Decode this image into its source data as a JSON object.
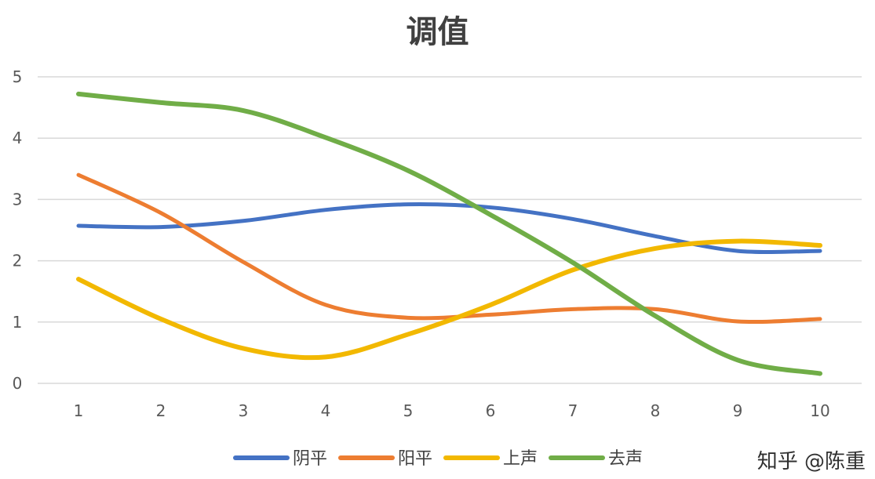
{
  "chart_data": {
    "type": "line",
    "title": "调值",
    "x": [
      1,
      2,
      3,
      4,
      5,
      6,
      7,
      8,
      9,
      10
    ],
    "x_labels": [
      "1",
      "2",
      "3",
      "4",
      "5",
      "6",
      "7",
      "8",
      "9",
      "10"
    ],
    "ylim": [
      0,
      5
    ],
    "y_ticks": [
      "0",
      "1",
      "2",
      "3",
      "4",
      "5"
    ],
    "grid": true,
    "legend_position": "bottom",
    "series": [
      {
        "name": "阴平",
        "color": "#4472C4",
        "values": [
          2.57,
          2.55,
          2.65,
          2.83,
          2.92,
          2.87,
          2.68,
          2.4,
          2.16,
          2.16
        ]
      },
      {
        "name": "阳平",
        "color": "#ED7D31",
        "values": [
          3.4,
          2.78,
          1.98,
          1.28,
          1.07,
          1.12,
          1.21,
          1.21,
          1.01,
          1.05
        ]
      },
      {
        "name": "上声",
        "color": "#F2B800",
        "values": [
          1.7,
          1.05,
          0.57,
          0.43,
          0.8,
          1.28,
          1.85,
          2.2,
          2.32,
          2.25
        ]
      },
      {
        "name": "去声",
        "color": "#70AD47",
        "values": [
          4.72,
          4.58,
          4.45,
          4.01,
          3.47,
          2.75,
          1.97,
          1.1,
          0.38,
          0.16
        ]
      }
    ]
  },
  "watermark": "知乎 @陈重"
}
